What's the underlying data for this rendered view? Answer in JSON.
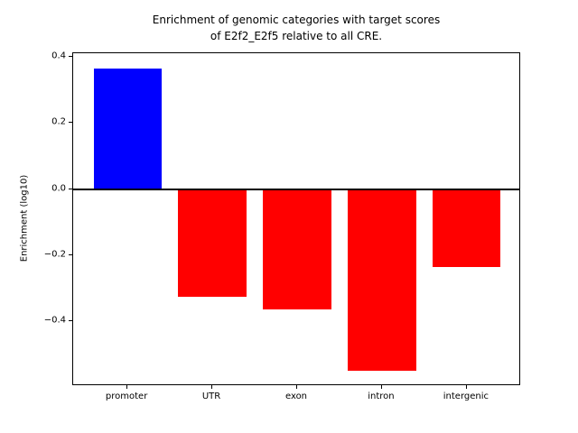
{
  "chart_data": {
    "type": "bar",
    "title": "Enrichment of genomic categories with target scores\nof E2f2_E2f5 relative to all CRE.",
    "xlabel": "",
    "ylabel": "Enrichment (log10)",
    "categories": [
      "promoter",
      "UTR",
      "exon",
      "intron",
      "intergenic"
    ],
    "values": [
      0.365,
      -0.325,
      -0.365,
      -0.55,
      -0.235
    ],
    "bar_colors": [
      "#0000ff",
      "#ff0000",
      "#ff0000",
      "#ff0000",
      "#ff0000"
    ],
    "positive_color": "#0000ff",
    "negative_color": "#ff0000",
    "ylim": [
      -0.596,
      0.411
    ],
    "yticks": [
      0.4,
      0.2,
      0.0,
      -0.2,
      -0.4
    ],
    "ytick_labels": [
      "0.4",
      "0.2",
      "0.0",
      "−0.2",
      "−0.4"
    ],
    "zero_line": true,
    "grid": false,
    "legend": "none",
    "bar_width_fraction": 0.8,
    "x_margin_fraction": 0.14
  }
}
